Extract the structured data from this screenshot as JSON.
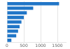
{
  "chart_data": {
    "type": "bar",
    "orientation": "horizontal",
    "categories": [
      null,
      null,
      null,
      null,
      null,
      null,
      null,
      null,
      null
    ],
    "values": [
      1550,
      780,
      590,
      500,
      430,
      375,
      330,
      275,
      130
    ],
    "color": "#2176c7",
    "xlim": [
      0,
      1750
    ],
    "xticks": [
      0,
      500,
      1000,
      1500
    ],
    "grid": true,
    "tick_labels": "x"
  }
}
